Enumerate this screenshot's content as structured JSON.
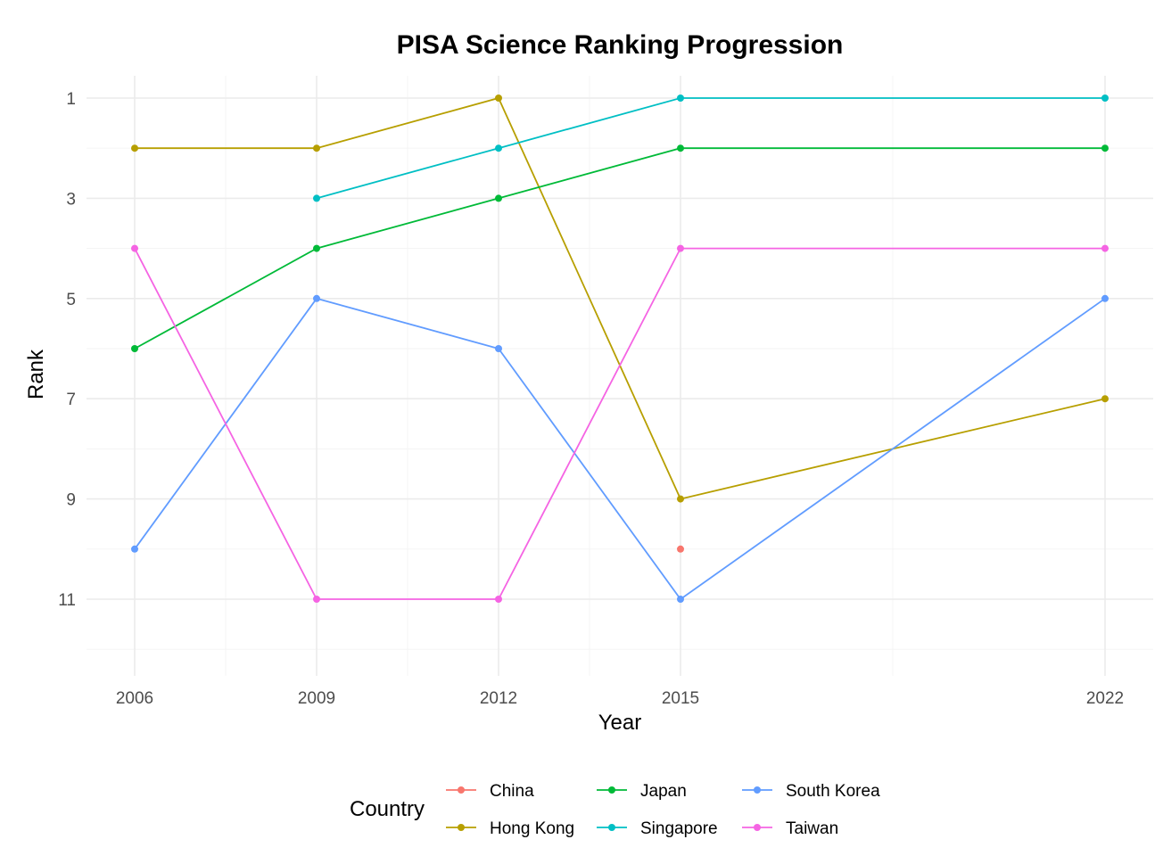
{
  "chart_data": {
    "type": "line",
    "title": "PISA Science Ranking Progression",
    "xlabel": "Year",
    "ylabel": "Rank",
    "x_ticks": [
      2006,
      2009,
      2012,
      2015,
      2022
    ],
    "y_ticks": [
      1,
      3,
      5,
      7,
      9,
      11
    ],
    "xlim": [
      2005.2,
      2022.8
    ],
    "ylim": [
      12.5,
      0.4
    ],
    "y_reversed": true,
    "grid": true,
    "legend": {
      "title": "Country",
      "position": "bottom"
    },
    "series": [
      {
        "name": "China",
        "color": "#F8766D",
        "points": [
          [
            2015,
            10
          ]
        ]
      },
      {
        "name": "Hong Kong",
        "color": "#B79F00",
        "points": [
          [
            2006,
            2
          ],
          [
            2009,
            2
          ],
          [
            2012,
            1
          ],
          [
            2015,
            9
          ],
          [
            2022,
            7
          ]
        ]
      },
      {
        "name": "Japan",
        "color": "#00BA38",
        "points": [
          [
            2006,
            6
          ],
          [
            2009,
            4
          ],
          [
            2012,
            3
          ],
          [
            2015,
            2
          ],
          [
            2022,
            2
          ]
        ]
      },
      {
        "name": "Singapore",
        "color": "#00BFC4",
        "points": [
          [
            2009,
            3
          ],
          [
            2012,
            2
          ],
          [
            2015,
            1
          ],
          [
            2022,
            1
          ]
        ]
      },
      {
        "name": "South Korea",
        "color": "#619CFF",
        "points": [
          [
            2006,
            10
          ],
          [
            2009,
            5
          ],
          [
            2012,
            6
          ],
          [
            2015,
            11
          ],
          [
            2022,
            5
          ]
        ]
      },
      {
        "name": "Taiwan",
        "color": "#F564E3",
        "points": [
          [
            2006,
            4
          ],
          [
            2009,
            11
          ],
          [
            2012,
            11
          ],
          [
            2015,
            4
          ],
          [
            2022,
            4
          ]
        ]
      }
    ]
  }
}
